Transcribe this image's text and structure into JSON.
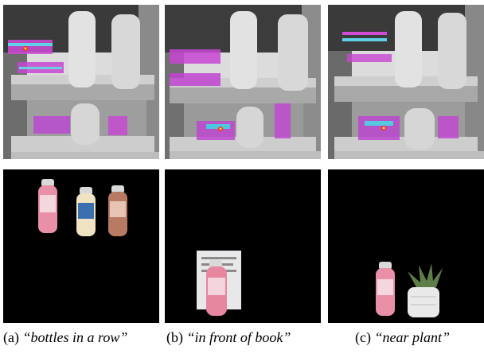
{
  "figure": {
    "panels": [
      {
        "id": "a",
        "label": "(a)",
        "query": "“bottles in a row”"
      },
      {
        "id": "b",
        "label": "(b)",
        "query": "“in front of book”"
      },
      {
        "id": "c",
        "label": "(c)",
        "query": "“near plant”"
      }
    ]
  }
}
